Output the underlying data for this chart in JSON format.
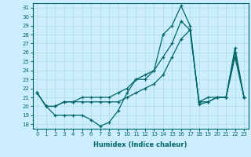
{
  "xlabel": "Humidex (Indice chaleur)",
  "bg_color": "#cceeff",
  "line_color": "#006666",
  "grid_color": "#aadddd",
  "xlim": [
    -0.5,
    23.5
  ],
  "ylim": [
    17.5,
    31.5
  ],
  "xticks": [
    0,
    1,
    2,
    3,
    4,
    5,
    6,
    7,
    8,
    9,
    10,
    11,
    12,
    13,
    14,
    15,
    16,
    17,
    18,
    19,
    20,
    21,
    22,
    23
  ],
  "yticks": [
    18,
    19,
    20,
    21,
    22,
    23,
    24,
    25,
    26,
    27,
    28,
    29,
    30,
    31
  ],
  "line1_y": [
    21.5,
    20.0,
    19.0,
    19.0,
    19.0,
    19.0,
    18.5,
    17.8,
    18.2,
    19.5,
    21.5,
    23.0,
    23.5,
    24.0,
    28.0,
    29.0,
    31.2,
    29.0,
    20.2,
    20.5,
    21.0,
    21.0,
    25.5,
    21.0
  ],
  "line2_y": [
    21.5,
    20.0,
    20.0,
    20.5,
    20.5,
    20.5,
    20.5,
    20.5,
    20.5,
    20.5,
    21.0,
    21.5,
    22.0,
    22.5,
    23.5,
    25.5,
    27.5,
    28.5,
    20.5,
    21.0,
    21.0,
    21.0,
    26.5,
    21.0
  ],
  "line3_y": [
    21.5,
    20.0,
    20.0,
    20.5,
    20.5,
    21.0,
    21.0,
    21.0,
    21.0,
    21.5,
    22.0,
    23.0,
    23.0,
    24.0,
    25.5,
    27.0,
    29.5,
    28.5,
    20.5,
    20.5,
    21.0,
    21.0,
    26.0,
    21.0
  ]
}
